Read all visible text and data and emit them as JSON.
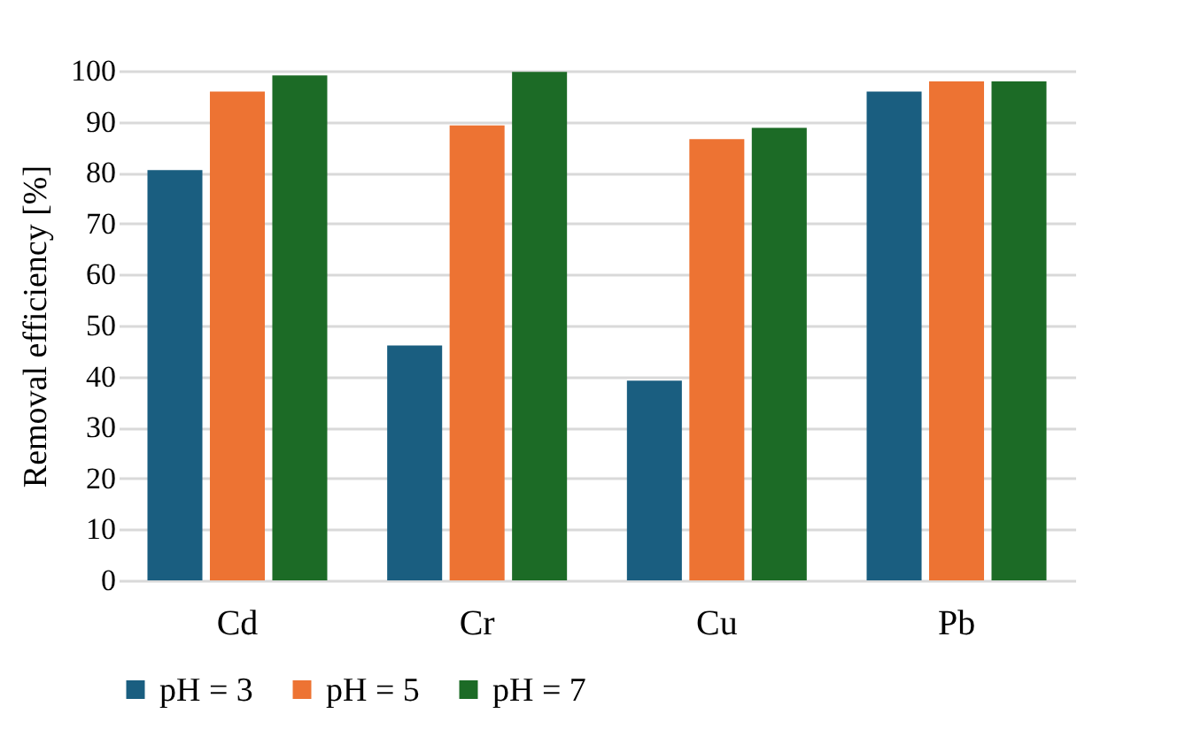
{
  "chart_data": {
    "type": "bar",
    "ylabel": "Removal efficiency [%]",
    "categories": [
      "Cd",
      "Cr",
      "Cu",
      "Pb"
    ],
    "series": [
      {
        "name": "pH = 3",
        "color": "#1a5e80",
        "values": [
          80.5,
          46.1,
          39.2,
          95.9
        ]
      },
      {
        "name": "pH = 5",
        "color": "#ed7333",
        "values": [
          95.9,
          89.3,
          86.6,
          97.9
        ]
      },
      {
        "name": "pH = 7",
        "color": "#1c6b26",
        "values": [
          99.1,
          99.8,
          88.8,
          97.9
        ]
      }
    ],
    "ylim": [
      0,
      100
    ],
    "yticks": [
      0,
      10,
      20,
      30,
      40,
      50,
      60,
      70,
      80,
      90,
      100
    ],
    "grid": "y",
    "legend": "bottom"
  }
}
